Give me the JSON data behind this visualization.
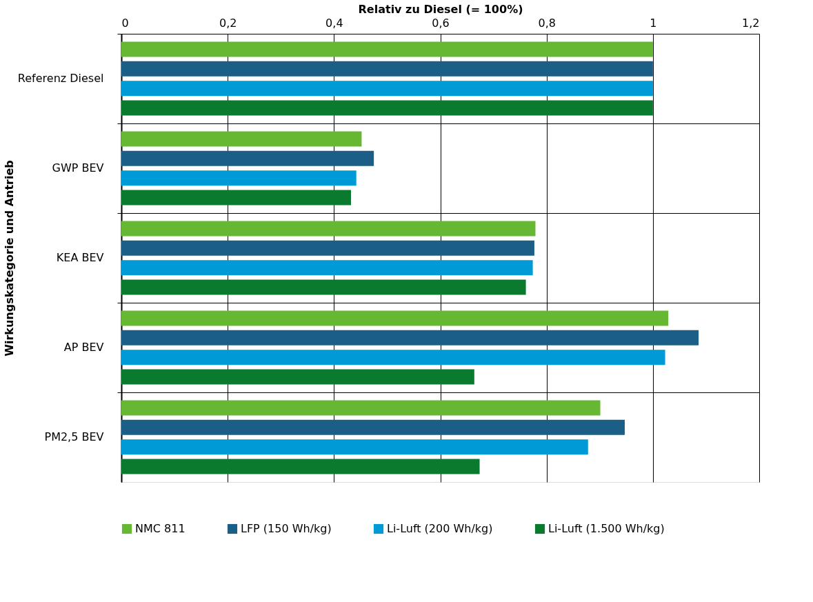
{
  "chart_data": {
    "type": "bar",
    "orientation": "horizontal",
    "xlabel": "Relativ zu Diesel (= 100%)",
    "ylabel": "Wirkungskategorie und Antrieb",
    "categories": [
      "Referenz Diesel",
      "GWP BEV",
      "KEA BEV",
      "AP BEV",
      "PM2,5 BEV"
    ],
    "series": [
      {
        "name": "NMC 811",
        "color": "#66b832",
        "values": [
          1,
          0.452,
          0.779,
          1.029,
          0.901
        ]
      },
      {
        "name": "LFP (150 Wh/kg)",
        "color": "#1b5e86",
        "values": [
          1,
          0.475,
          0.777,
          1.086,
          0.947
        ]
      },
      {
        "name": "Li-Luft (200 Wh/kg)",
        "color": "#009bd6",
        "values": [
          1,
          0.442,
          0.774,
          1.023,
          0.878
        ]
      },
      {
        "name": "Li-Luft (1.500 Wh/kg)",
        "color": "#0a7a2e",
        "values": [
          1,
          0.432,
          0.761,
          0.664,
          0.674
        ]
      }
    ],
    "xlim": [
      0,
      1.2
    ],
    "xticks": [
      0,
      {
        "value": 0.2,
        "label": "0,2"
      },
      {
        "value": 0.4,
        "label": "0,4"
      },
      {
        "value": 0.6,
        "label": "0,6"
      },
      {
        "value": 0.8,
        "label": "0,8"
      },
      1,
      {
        "value": 1.2,
        "label": "1,2"
      }
    ],
    "grid": true,
    "legend": "bottom"
  }
}
